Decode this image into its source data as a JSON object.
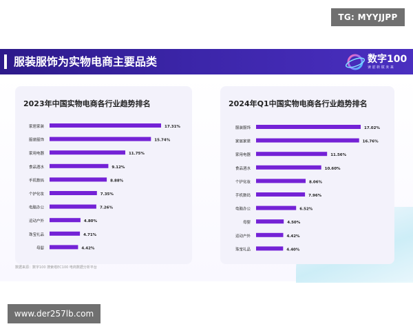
{
  "watermark_top": "TG: MYYJJPP",
  "watermark_bottom": "www.der257lb.com",
  "banner": {
    "title": "服装服饰为实物电商主要品类",
    "logo_text": "数字100",
    "logo_sub": "读 前 新 赋 未 来"
  },
  "footer_note": "数据来源：数字100 搜索塔EC100 电商数据分析平台",
  "colors": {
    "bar": "#7422d6",
    "banner": "#3b25a8",
    "panel": "#f3f2fb"
  },
  "chart_data": [
    {
      "type": "bar",
      "orientation": "horizontal",
      "title": "2023年中国实物电商各行业趋势排名",
      "categories": [
        "家居家装",
        "服装服饰",
        "家用电器",
        "食品酒水",
        "手机数码",
        "个护化妆",
        "电脑办公",
        "运动户外",
        "珠宝礼品",
        "母婴"
      ],
      "values": [
        17.31,
        15.74,
        11.75,
        9.12,
        8.88,
        7.35,
        7.26,
        4.8,
        4.71,
        4.42
      ],
      "labels": [
        "17.31%",
        "15.74%",
        "11.75%",
        "9.12%",
        "8.88%",
        "7.35%",
        "7.26%",
        "4.80%",
        "4.71%",
        "4.42%"
      ]
    },
    {
      "type": "bar",
      "orientation": "horizontal",
      "title": "2024年Q1中国实物电商各行业趋势排名",
      "categories": [
        "服装服饰",
        "家居家装",
        "家用电器",
        "食品酒水",
        "个护化妆",
        "手机数码",
        "电脑办公",
        "母婴",
        "运动户外",
        "珠宝礼品"
      ],
      "values": [
        17.02,
        16.76,
        11.56,
        10.6,
        8.06,
        7.96,
        6.52,
        4.5,
        4.42,
        4.4
      ],
      "labels": [
        "17.02%",
        "16.76%",
        "11.56%",
        "10.60%",
        "8.06%",
        "7.96%",
        "6.52%",
        "4.50%",
        "4.42%",
        "4.40%"
      ]
    }
  ]
}
